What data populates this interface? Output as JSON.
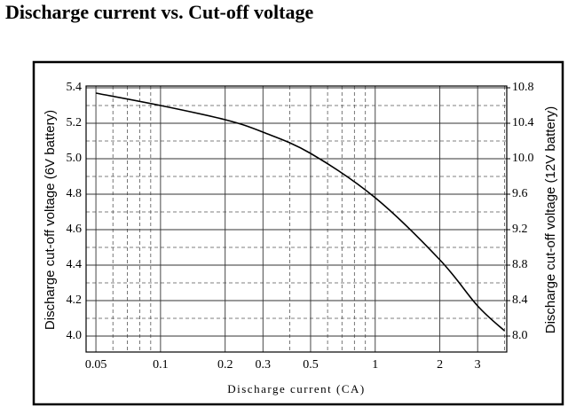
{
  "chart_data": {
    "type": "line",
    "title": "Discharge current vs. Cut-off voltage",
    "x_label": "Discharge current (CA)",
    "y_label": "Discharge cut-off voltage (6V battery)",
    "y2_label": "Discharge cut-off voltage (12V battery)",
    "log_x": true,
    "grid": true,
    "x": [
      0.05,
      0.1,
      0.2,
      0.3,
      0.5,
      1,
      2,
      3,
      4
    ],
    "series": [
      {
        "name": "Cut-off voltage",
        "color": "#000000",
        "values": [
          5.37,
          5.3,
          5.22,
          5.15,
          5.03,
          4.78,
          4.43,
          4.17,
          4.03
        ]
      }
    ],
    "xlim": [
      0.045,
      4.1
    ],
    "xticks": [
      0.05,
      0.1,
      0.2,
      0.3,
      0.5,
      1,
      2,
      3
    ],
    "x_minor_ticks": [
      0.06,
      0.07,
      0.08,
      0.09,
      0.4,
      0.6,
      0.7,
      0.8,
      0.9,
      4
    ],
    "ylim": [
      3.91,
      5.41
    ],
    "yticks": [
      {
        "value": 4,
        "label": "4.0"
      },
      4.2,
      4.4,
      4.6,
      4.8,
      {
        "value": 5,
        "label": "5.0"
      },
      5.2,
      5.4
    ],
    "y_minor_ticks": [
      4.1,
      4.3,
      4.5,
      4.7,
      4.9,
      5.1,
      5.3
    ],
    "y2lim": [
      7.82,
      10.82
    ],
    "y2ticks": [
      {
        "value": 8,
        "label": "8.0"
      },
      8.4,
      8.8,
      9.2,
      9.6,
      {
        "value": 10,
        "label": "10.0"
      },
      10.4,
      10.8
    ]
  }
}
